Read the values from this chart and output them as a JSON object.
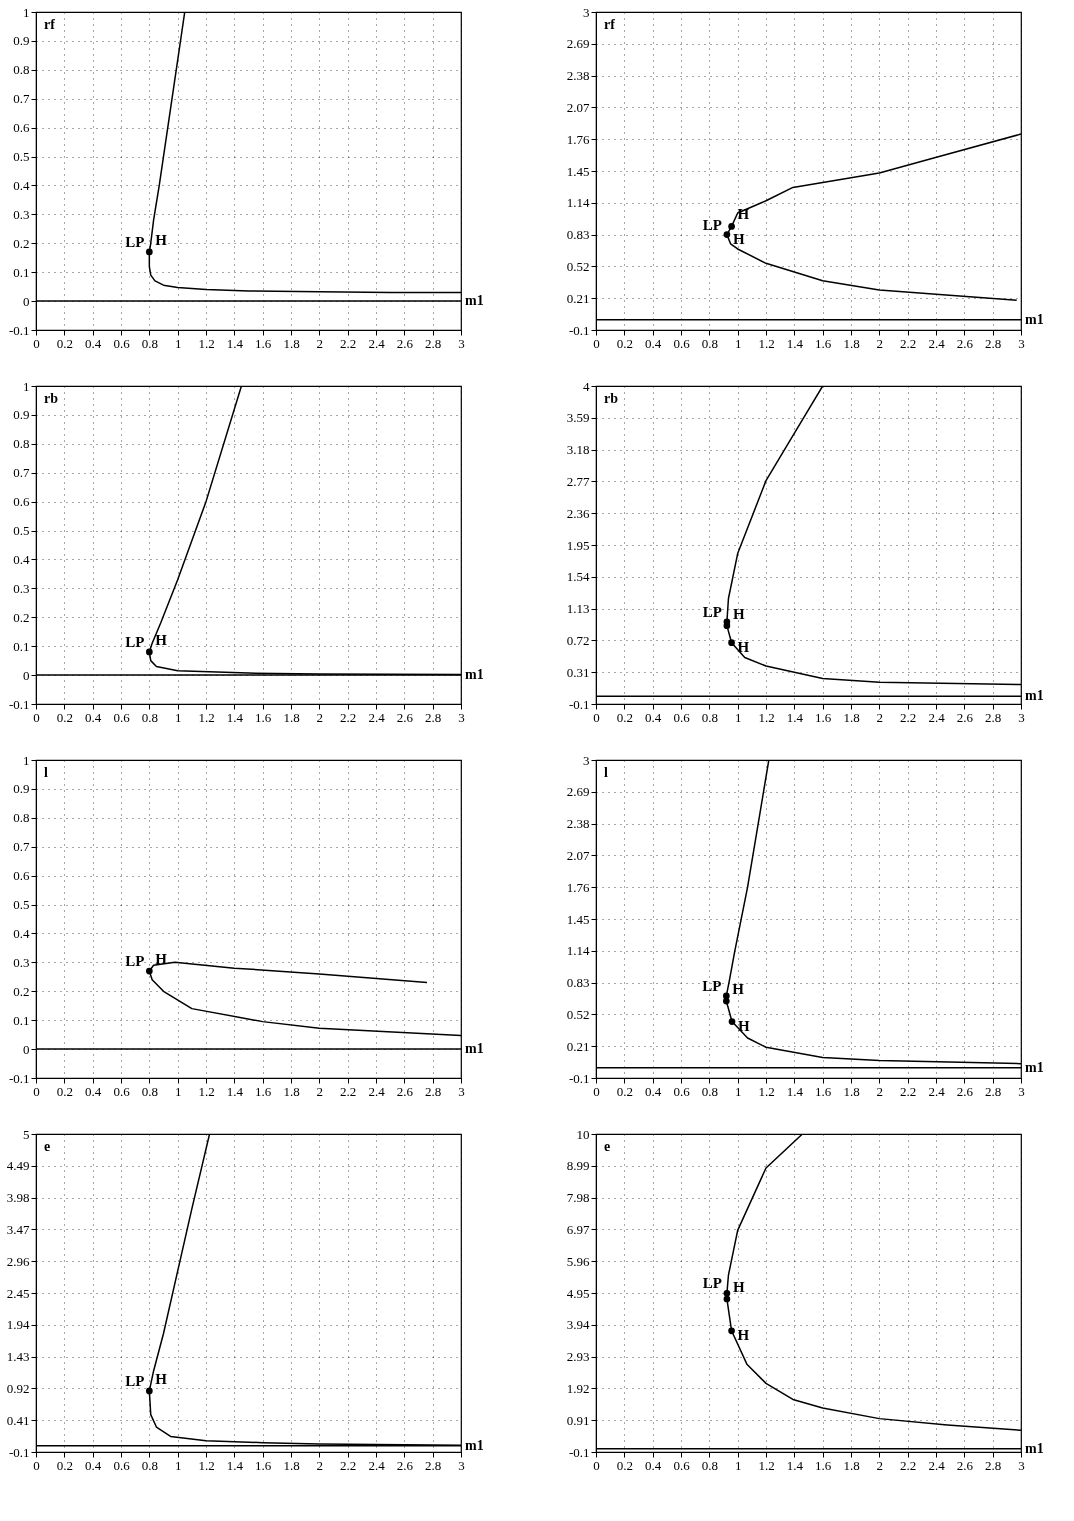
{
  "chart_data": [
    {
      "type": "line",
      "ylabel": "rf",
      "xlabel": "m1",
      "xlim": [
        0,
        3
      ],
      "ylim": [
        -0.1,
        1
      ],
      "xticks": [
        0,
        0.2,
        0.4,
        0.6,
        0.8,
        1,
        1.2,
        1.4,
        1.6,
        1.8,
        2,
        2.2,
        2.4,
        2.6,
        2.8,
        3
      ],
      "yticks": [
        -0.1,
        0,
        0.1,
        0.2,
        0.3,
        0.4,
        0.5,
        0.6,
        0.7,
        0.8,
        0.9,
        1
      ],
      "grid": true,
      "ref_lines": [
        {
          "axis": "y",
          "value": 0,
          "color": "#000000"
        }
      ],
      "series": [
        {
          "type": "line",
          "line_style": "solid",
          "color": "#000000",
          "x": [
            1.05,
            0.99,
            0.93,
            0.87,
            0.83,
            0.81,
            0.8,
            0.8,
            0.81,
            0.84,
            0.9,
            1.0,
            1.2,
            1.5,
            2,
            2.5,
            3
          ],
          "values": [
            1,
            0.8,
            0.6,
            0.4,
            0.28,
            0.2,
            0.17,
            0.12,
            0.09,
            0.07,
            0.055,
            0.047,
            0.04,
            0.035,
            0.032,
            0.03,
            0.03
          ]
        },
        {
          "type": "scatter",
          "marker": "circle",
          "color": "#000000",
          "x": [
            0.8
          ],
          "values": [
            0.17
          ]
        }
      ],
      "annotations": [
        {
          "text": "LP",
          "x": 0.8,
          "y": 0.17
        },
        {
          "text": "H",
          "x": 0.8,
          "y": 0.17
        }
      ]
    },
    {
      "type": "line",
      "ylabel": "rf",
      "xlabel": "m1",
      "xlim": [
        0,
        3
      ],
      "ylim": [
        -0.1,
        3
      ],
      "xticks": [
        0,
        0.2,
        0.4,
        0.6,
        0.8,
        1,
        1.2,
        1.4,
        1.6,
        1.8,
        2,
        2.2,
        2.4,
        2.6,
        2.8,
        3
      ],
      "yticks": [
        -0.1,
        0.21,
        0.52,
        0.83,
        1.14,
        1.45,
        1.76,
        2.07,
        2.38,
        2.69,
        3
      ],
      "grid": true,
      "ref_lines": [
        {
          "axis": "y",
          "value": 0,
          "color": "#000000"
        }
      ],
      "series": [
        {
          "type": "line",
          "line_style": "solid",
          "color": "#000000",
          "x": [
            3,
            2.39,
            2,
            1.39,
            1.2,
            1.0,
            0.957,
            0.924,
            0.95,
            1.0,
            1.2,
            1.6,
            2,
            2.59,
            2.97
          ],
          "values": [
            1.81,
            1.58,
            1.43,
            1.29,
            1.16,
            1.04,
            0.91,
            0.83,
            0.74,
            0.69,
            0.55,
            0.38,
            0.29,
            0.23,
            0.19
          ]
        },
        {
          "type": "scatter",
          "marker": "circle",
          "color": "#000000",
          "x": [
            0.924,
            0.957
          ],
          "values": [
            0.83,
            0.91
          ]
        }
      ],
      "annotations": [
        {
          "text": "LP",
          "x": 0.924,
          "y": 0.83
        },
        {
          "text": "H",
          "x": 0.957,
          "y": 0.91
        },
        {
          "text": "H",
          "x": 0.924,
          "y": 0.83
        }
      ]
    },
    {
      "type": "line",
      "ylabel": "rb",
      "xlabel": "m1",
      "xlim": [
        0,
        3
      ],
      "ylim": [
        -0.1,
        1
      ],
      "xticks": [
        0,
        0.2,
        0.4,
        0.6,
        0.8,
        1,
        1.2,
        1.4,
        1.6,
        1.8,
        2,
        2.2,
        2.4,
        2.6,
        2.8,
        3
      ],
      "yticks": [
        -0.1,
        0,
        0.1,
        0.2,
        0.3,
        0.4,
        0.5,
        0.6,
        0.7,
        0.8,
        0.9,
        1
      ],
      "grid": true,
      "ref_lines": [
        {
          "axis": "y",
          "value": 0,
          "color": "#000000"
        }
      ],
      "series": [
        {
          "type": "line",
          "line_style": "solid",
          "color": "#000000",
          "x": [
            1.45,
            1.2,
            1.0,
            0.88,
            0.82,
            0.8,
            0.81,
            0.85,
            1.0,
            1.5,
            2,
            3
          ],
          "values": [
            1,
            0.6,
            0.33,
            0.18,
            0.11,
            0.08,
            0.05,
            0.03,
            0.015,
            0.007,
            0.004,
            0.002
          ]
        },
        {
          "type": "scatter",
          "marker": "circle",
          "color": "#000000",
          "x": [
            0.8
          ],
          "values": [
            0.08
          ]
        }
      ],
      "annotations": [
        {
          "text": "LP",
          "x": 0.8,
          "y": 0.08
        },
        {
          "text": "H",
          "x": 0.8,
          "y": 0.08
        }
      ]
    },
    {
      "type": "line",
      "ylabel": "rb",
      "xlabel": "m1",
      "xlim": [
        0,
        3
      ],
      "ylim": [
        -0.1,
        4
      ],
      "xticks": [
        0,
        0.2,
        0.4,
        0.6,
        0.8,
        1,
        1.2,
        1.4,
        1.6,
        1.8,
        2,
        2.2,
        2.4,
        2.6,
        2.8,
        3
      ],
      "yticks": [
        -0.1,
        0.31,
        0.72,
        1.13,
        1.54,
        1.95,
        2.36,
        2.77,
        3.18,
        3.59,
        4
      ],
      "grid": true,
      "ref_lines": [
        {
          "axis": "y",
          "value": 0,
          "color": "#000000"
        }
      ],
      "series": [
        {
          "type": "line",
          "line_style": "solid",
          "color": "#000000",
          "x": [
            1.6,
            1.39,
            1.2,
            1.0,
            0.935,
            0.924,
            0.924,
            0.957,
            1.05,
            1.2,
            1.6,
            2,
            3
          ],
          "values": [
            4,
            3.36,
            2.78,
            1.84,
            1.26,
            0.96,
            0.91,
            0.69,
            0.5,
            0.39,
            0.23,
            0.18,
            0.15
          ]
        },
        {
          "type": "scatter",
          "marker": "circle",
          "color": "#000000",
          "x": [
            0.924,
            0.924,
            0.957
          ],
          "values": [
            0.96,
            0.91,
            0.69
          ]
        }
      ],
      "annotations": [
        {
          "text": "LP",
          "x": 0.924,
          "y": 0.96
        },
        {
          "text": "H",
          "x": 0.924,
          "y": 0.91
        },
        {
          "text": "H",
          "x": 0.957,
          "y": 0.69
        }
      ]
    },
    {
      "type": "line",
      "ylabel": "l",
      "xlabel": "m1",
      "xlim": [
        0,
        3
      ],
      "ylim": [
        -0.1,
        1
      ],
      "xticks": [
        0,
        0.2,
        0.4,
        0.6,
        0.8,
        1,
        1.2,
        1.4,
        1.6,
        1.8,
        2,
        2.2,
        2.4,
        2.6,
        2.8,
        3
      ],
      "yticks": [
        -0.1,
        0,
        0.1,
        0.2,
        0.3,
        0.4,
        0.5,
        0.6,
        0.7,
        0.8,
        0.9,
        1
      ],
      "grid": true,
      "ref_lines": [
        {
          "axis": "y",
          "value": 0,
          "color": "#000000"
        }
      ],
      "series": [
        {
          "type": "line",
          "line_style": "solid",
          "color": "#000000",
          "x": [
            2.76,
            2.0,
            1.4,
            0.98,
            0.83,
            0.8,
            0.82,
            0.9,
            1.1,
            1.6,
            2.0,
            3
          ],
          "values": [
            0.23,
            0.26,
            0.28,
            0.3,
            0.29,
            0.27,
            0.24,
            0.2,
            0.14,
            0.095,
            0.072,
            0.047
          ]
        },
        {
          "type": "scatter",
          "marker": "circle",
          "color": "#000000",
          "x": [
            0.8
          ],
          "values": [
            0.27
          ]
        }
      ],
      "annotations": [
        {
          "text": "LP",
          "x": 0.8,
          "y": 0.27
        },
        {
          "text": "H",
          "x": 0.8,
          "y": 0.27
        }
      ]
    },
    {
      "type": "line",
      "ylabel": "l",
      "xlabel": "m1",
      "xlim": [
        0,
        3
      ],
      "ylim": [
        -0.1,
        3
      ],
      "xticks": [
        0,
        0.2,
        0.4,
        0.6,
        0.8,
        1,
        1.2,
        1.4,
        1.6,
        1.8,
        2,
        2.2,
        2.4,
        2.6,
        2.8,
        3
      ],
      "yticks": [
        -0.1,
        0.21,
        0.52,
        0.83,
        1.14,
        1.45,
        1.76,
        2.07,
        2.38,
        2.69,
        3
      ],
      "grid": true,
      "ref_lines": [
        {
          "axis": "y",
          "value": 0,
          "color": "#000000"
        }
      ],
      "series": [
        {
          "type": "line",
          "line_style": "solid",
          "color": "#000000",
          "x": [
            1.22,
            1.07,
            0.98,
            0.94,
            0.92,
            0.92,
            0.96,
            1.07,
            1.2,
            1.6,
            2,
            3
          ],
          "values": [
            3,
            1.76,
            1.14,
            0.84,
            0.7,
            0.65,
            0.45,
            0.29,
            0.2,
            0.1,
            0.07,
            0.04
          ]
        },
        {
          "type": "scatter",
          "marker": "circle",
          "color": "#000000",
          "x": [
            0.92,
            0.92,
            0.96
          ],
          "values": [
            0.7,
            0.65,
            0.45
          ]
        }
      ],
      "annotations": [
        {
          "text": "LP",
          "x": 0.92,
          "y": 0.7
        },
        {
          "text": "H",
          "x": 0.92,
          "y": 0.65
        },
        {
          "text": "H",
          "x": 0.96,
          "y": 0.45
        }
      ]
    },
    {
      "type": "line",
      "ylabel": "e",
      "xlabel": "m1",
      "xlim": [
        0,
        3
      ],
      "ylim": [
        -0.1,
        5
      ],
      "xticks": [
        0,
        0.2,
        0.4,
        0.6,
        0.8,
        1,
        1.2,
        1.4,
        1.6,
        1.8,
        2,
        2.2,
        2.4,
        2.6,
        2.8,
        3
      ],
      "yticks": [
        -0.1,
        0.41,
        0.92,
        1.43,
        1.94,
        2.45,
        2.96,
        3.47,
        3.98,
        4.49,
        5
      ],
      "grid": true,
      "ref_lines": [
        {
          "axis": "y",
          "value": 0,
          "color": "#000000"
        }
      ],
      "series": [
        {
          "type": "line",
          "line_style": "solid",
          "color": "#000000",
          "x": [
            1.225,
            1.1,
            1.0,
            0.9,
            0.83,
            0.8,
            0.81,
            0.85,
            0.95,
            1.2,
            1.6,
            2,
            3
          ],
          "values": [
            5,
            3.8,
            2.8,
            1.8,
            1.2,
            0.88,
            0.5,
            0.3,
            0.15,
            0.08,
            0.05,
            0.03,
            0.01
          ]
        },
        {
          "type": "scatter",
          "marker": "circle",
          "color": "#000000",
          "x": [
            0.8
          ],
          "values": [
            0.88
          ]
        }
      ],
      "annotations": [
        {
          "text": "LP",
          "x": 0.8,
          "y": 0.88
        },
        {
          "text": "H",
          "x": 0.8,
          "y": 0.88
        }
      ]
    },
    {
      "type": "line",
      "ylabel": "e",
      "xlabel": "m1",
      "xlim": [
        0,
        3
      ],
      "ylim": [
        -0.1,
        10
      ],
      "xticks": [
        0,
        0.2,
        0.4,
        0.6,
        0.8,
        1,
        1.2,
        1.4,
        1.6,
        1.8,
        2,
        2.2,
        2.4,
        2.6,
        2.8,
        3
      ],
      "yticks": [
        -0.1,
        0.91,
        1.92,
        2.93,
        3.94,
        4.95,
        5.96,
        6.97,
        7.98,
        8.99,
        10
      ],
      "grid": true,
      "ref_lines": [
        {
          "axis": "y",
          "value": 0,
          "color": "#000000"
        }
      ],
      "series": [
        {
          "type": "line",
          "line_style": "solid",
          "color": "#000000",
          "x": [
            1.457,
            1.2,
            1.0,
            0.935,
            0.924,
            0.924,
            0.957,
            1.065,
            1.2,
            1.39,
            1.6,
            2,
            2.48,
            3
          ],
          "values": [
            10,
            8.92,
            6.94,
            5.52,
            4.94,
            4.76,
            3.75,
            2.69,
            2.08,
            1.57,
            1.3,
            0.96,
            0.76,
            0.59
          ]
        },
        {
          "type": "scatter",
          "marker": "circle",
          "color": "#000000",
          "x": [
            0.924,
            0.924,
            0.957
          ],
          "values": [
            4.94,
            4.76,
            3.75
          ]
        }
      ],
      "annotations": [
        {
          "text": "LP",
          "x": 0.924,
          "y": 4.94
        },
        {
          "text": "H",
          "x": 0.924,
          "y": 4.76
        },
        {
          "text": "H",
          "x": 0.957,
          "y": 3.75
        }
      ]
    }
  ]
}
